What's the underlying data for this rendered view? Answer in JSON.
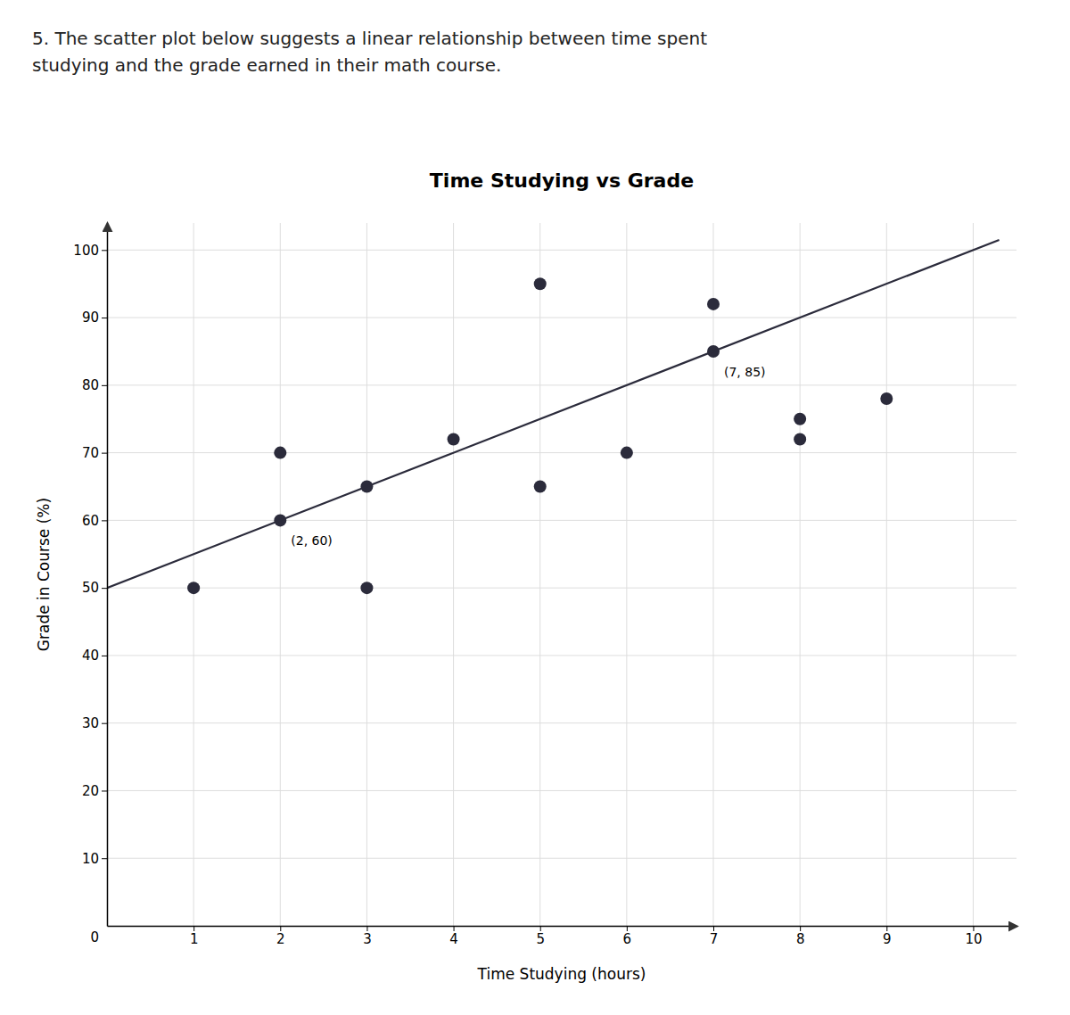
{
  "chart_data": {
    "type": "scatter",
    "title": "Time Studying vs Grade",
    "subtitle": "5. The scatter plot below suggests a linear relationship between time spent\nstudying and the grade earned in their math course.",
    "xlabel": "Time Studying (hours)",
    "ylabel": "Grade in Course (%)",
    "series": [
      {
        "type": "scatter",
        "marker": "circle",
        "color": "#2b2b3b",
        "x": [
          1,
          2,
          2,
          3,
          3,
          4,
          5,
          5,
          6,
          7,
          7,
          8,
          8,
          9
        ],
        "values": [
          50,
          60,
          70,
          50,
          65,
          72,
          95,
          65,
          70,
          85,
          92,
          72,
          75,
          78
        ]
      },
      {
        "type": "line",
        "line_style": "solid",
        "color": "#2b2b3b",
        "x": [
          0,
          10.3
        ],
        "values": [
          50,
          101.5
        ]
      }
    ],
    "annotations": [
      {
        "x": 7,
        "y": 85,
        "text": "(7, 85)"
      },
      {
        "x": 2,
        "y": 60,
        "text": "(2, 60)"
      }
    ],
    "origin_label": "0",
    "xlim": [
      0,
      10.5
    ],
    "ylim": [
      0,
      104
    ],
    "xticks": [
      1,
      2,
      3,
      4,
      5,
      6,
      7,
      8,
      9,
      10
    ],
    "yticks": [
      10,
      20,
      30,
      40,
      50,
      60,
      70,
      80,
      90,
      100
    ],
    "grid": true
  }
}
